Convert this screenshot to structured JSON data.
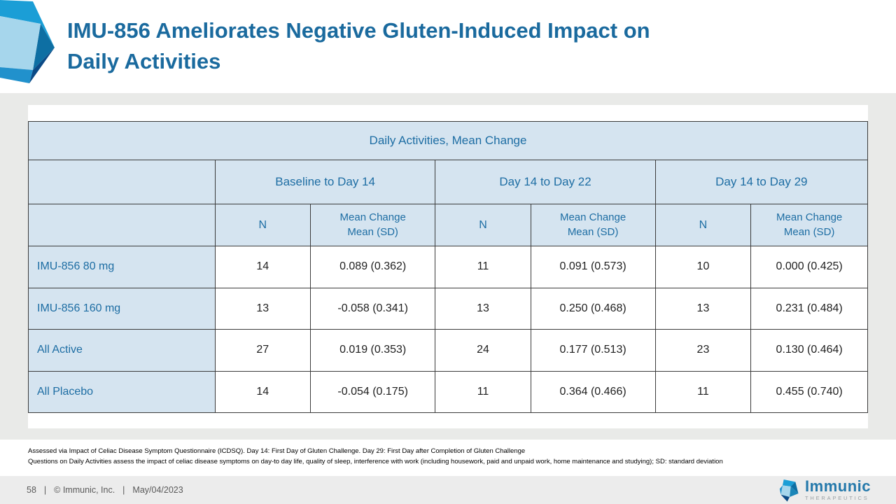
{
  "slide": {
    "title_lines": [
      "IMU-856 Ameliorates Negative Gluten-Induced Impact on",
      "Daily Activities"
    ]
  },
  "table": {
    "title": "Daily Activities, Mean Change",
    "groups": [
      "Baseline to Day 14",
      "Day 14 to Day 22",
      "Day 14 to Day 29"
    ],
    "n_label": "N",
    "mean_label": "Mean Change\nMean (SD)",
    "rows": [
      {
        "label": "IMU-856 80 mg",
        "values": [
          "14",
          "0.089 (0.362)",
          "11",
          "0.091 (0.573)",
          "10",
          "0.000 (0.425)"
        ]
      },
      {
        "label": "IMU-856 160 mg",
        "values": [
          "13",
          "-0.058 (0.341)",
          "13",
          "0.250 (0.468)",
          "13",
          "0.231 (0.484)"
        ]
      },
      {
        "label": "All Active",
        "values": [
          "27",
          "0.019 (0.353)",
          "24",
          "0.177 (0.513)",
          "23",
          "0.130 (0.464)"
        ]
      },
      {
        "label": "All Placebo",
        "values": [
          "14",
          "-0.054 (0.175)",
          "11",
          "0.364 (0.466)",
          "11",
          "0.455 (0.740)"
        ]
      }
    ]
  },
  "footnotes": [
    "Assessed via Impact of Celiac Disease Symptom Questionnaire (ICDSQ). Day 14: First Day of Gluten Challenge. Day 29: First Day after Completion of Gluten Challenge",
    "Questions on Daily Activities assess the impact of celiac disease symptoms on day-to day life, quality of sleep, interference with work (including housework, paid and unpaid work, home maintenance and studying); SD: standard deviation"
  ],
  "footer": {
    "page": "58",
    "separator": "|",
    "copyright": "© Immunic, Inc.",
    "date": "May/04/2023"
  },
  "brand": {
    "name": "Immunic",
    "tagline": "THERAPEUTICS"
  },
  "colors": {
    "title_blue": "#1a6a9e",
    "table_text_blue": "#1d6da3",
    "table_header_bg": "#d5e4f0",
    "gem_mid_blue": "#1b9ed6",
    "gem_light_blue": "#a6d6ec",
    "gem_steel_blue": "#0e6fa3",
    "gem_navy": "#0b4a86"
  }
}
